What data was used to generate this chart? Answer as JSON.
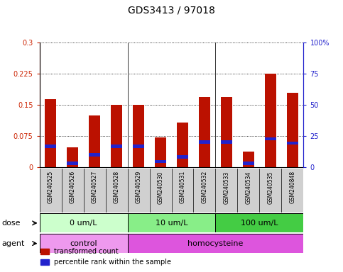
{
  "title": "GDS3413 / 97018",
  "samples": [
    "GSM240525",
    "GSM240526",
    "GSM240527",
    "GSM240528",
    "GSM240529",
    "GSM240530",
    "GSM240531",
    "GSM240532",
    "GSM240533",
    "GSM240534",
    "GSM240535",
    "GSM240848"
  ],
  "red_values": [
    0.163,
    0.048,
    0.125,
    0.15,
    0.15,
    0.072,
    0.108,
    0.168,
    0.168,
    0.038,
    0.225,
    0.178
  ],
  "blue_positions": [
    0.05,
    0.01,
    0.03,
    0.05,
    0.05,
    0.014,
    0.025,
    0.06,
    0.06,
    0.01,
    0.068,
    0.058
  ],
  "blue_thickness": 0.008,
  "ylim_left": [
    0,
    0.3
  ],
  "ylim_right": [
    0,
    100
  ],
  "yticks_left": [
    0,
    0.075,
    0.15,
    0.225,
    0.3
  ],
  "yticks_right": [
    0,
    25,
    50,
    75,
    100
  ],
  "ytick_labels_left": [
    "0",
    "0.075",
    "0.15",
    "0.225",
    "0.3"
  ],
  "ytick_labels_right": [
    "0",
    "25",
    "50",
    "75",
    "100%"
  ],
  "dose_groups": [
    {
      "label": "0 um/L",
      "start": 0,
      "end": 4
    },
    {
      "label": "10 um/L",
      "start": 4,
      "end": 8
    },
    {
      "label": "100 um/L",
      "start": 8,
      "end": 12
    }
  ],
  "dose_colors": [
    "#ccffcc",
    "#88ee88",
    "#44cc44"
  ],
  "agent_groups": [
    {
      "label": "control",
      "start": 0,
      "end": 4
    },
    {
      "label": "homocysteine",
      "start": 4,
      "end": 12
    }
  ],
  "agent_colors": [
    "#ee99ee",
    "#dd55dd"
  ],
  "dose_label": "dose",
  "agent_label": "agent",
  "bar_color": "#bb1100",
  "blue_color": "#2222cc",
  "bar_width": 0.5,
  "legend_red": "transformed count",
  "legend_blue": "percentile rank within the sample",
  "left_axis_color": "#cc2200",
  "right_axis_color": "#2222cc",
  "xtick_bg": "#d0d0d0",
  "group_line_color": "#333333"
}
